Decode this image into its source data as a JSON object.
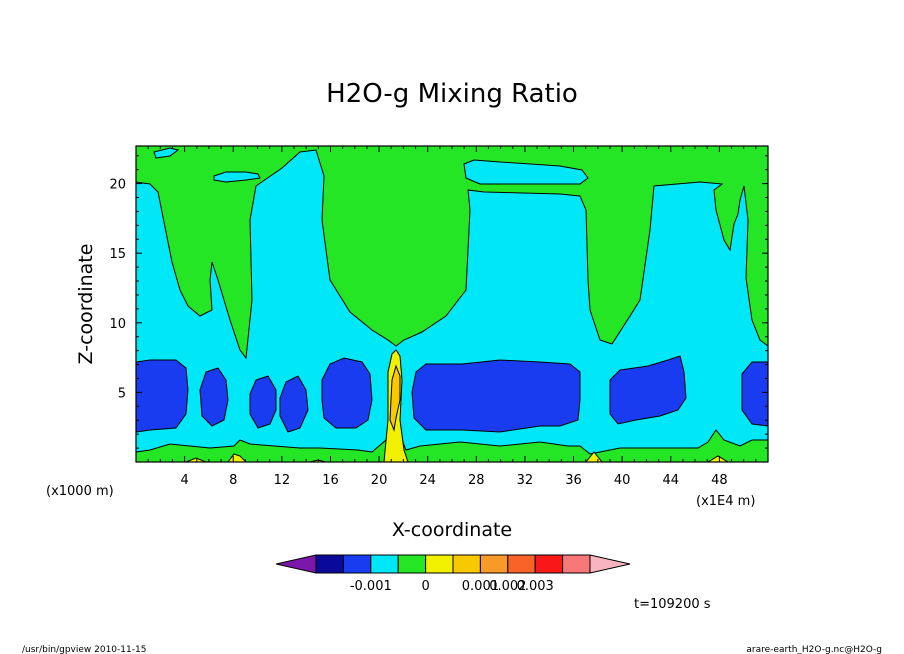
{
  "chart_data": {
    "type": "heatmap",
    "title": "H2O-g Mixing Ratio",
    "xlabel": "X-coordinate",
    "ylabel": "Z-coordinate",
    "x_unit_left": "(x1000 m)",
    "x_unit_right": "(x1E4 m)",
    "xlim": [
      0,
      52
    ],
    "ylim": [
      0,
      22.7
    ],
    "x_ticks": [
      4,
      8,
      12,
      16,
      20,
      24,
      28,
      32,
      36,
      40,
      44,
      48
    ],
    "y_ticks": [
      5,
      10,
      15,
      20
    ],
    "colorbar": {
      "colors": [
        "#7b16a8",
        "#0a0a9a",
        "#1a3cf0",
        "#00e8f8",
        "#24e624",
        "#f0f000",
        "#f8c800",
        "#f89a28",
        "#f86428",
        "#f81818",
        "#f87878",
        "#f8b4c0"
      ],
      "labels": [
        "-0.001",
        "0",
        "0.001",
        "0.002",
        "0.003"
      ]
    },
    "time_label": "t=109200 s"
  },
  "footer": {
    "left": "/usr/bin/gpview   2010-11-15",
    "right": "arare-earth_H2O-g.nc@H2O-g"
  }
}
